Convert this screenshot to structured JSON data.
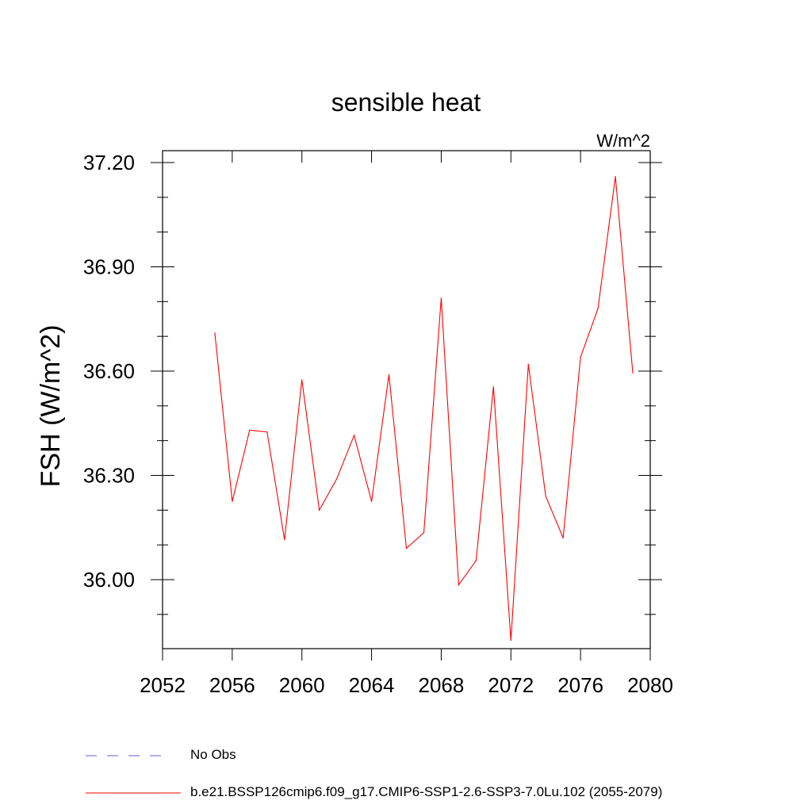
{
  "chart_data": {
    "type": "line",
    "title": "sensible heat",
    "units": "W/m^2",
    "ylabel": "FSH  (W/m^2)",
    "xlabel": "",
    "xlim": [
      2052,
      2080
    ],
    "ylim": [
      35.8,
      37.23
    ],
    "x_ticks": [
      2052,
      2056,
      2060,
      2064,
      2068,
      2072,
      2076,
      2080
    ],
    "y_ticks": [
      "37.20",
      "36.90",
      "36.60",
      "36.30",
      "36.00"
    ],
    "y_tick_values": [
      37.2,
      36.9,
      36.6,
      36.3,
      36.0
    ],
    "series": [
      {
        "name": "b.e21.BSSP126cmip6.f09_g17.CMIP6-SSP1-2.6-SSP3-7.0Lu.102 (2055-2079)",
        "color": "#ff0000",
        "x": [
          2055,
          2056,
          2057,
          2058,
          2059,
          2060,
          2061,
          2062,
          2063,
          2064,
          2065,
          2066,
          2067,
          2068,
          2069,
          2070,
          2071,
          2072,
          2073,
          2074,
          2075,
          2076,
          2077,
          2078,
          2079
        ],
        "y": [
          36.71,
          36.225,
          36.43,
          36.425,
          36.115,
          36.575,
          36.2,
          36.29,
          36.415,
          36.225,
          36.59,
          36.09,
          36.135,
          36.81,
          35.985,
          36.055,
          36.555,
          35.825,
          36.62,
          36.24,
          36.12,
          36.64,
          36.78,
          37.16,
          36.595
        ]
      }
    ],
    "legend": [
      {
        "label": "No Obs",
        "color": "#6a5acd",
        "style": "dashed"
      },
      {
        "label": "b.e21.BSSP126cmip6.f09_g17.CMIP6-SSP1-2.6-SSP3-7.0Lu.102 (2055-2079)",
        "color": "#ff0000",
        "style": "solid"
      }
    ],
    "grid": false,
    "legend_position": "bottom"
  }
}
